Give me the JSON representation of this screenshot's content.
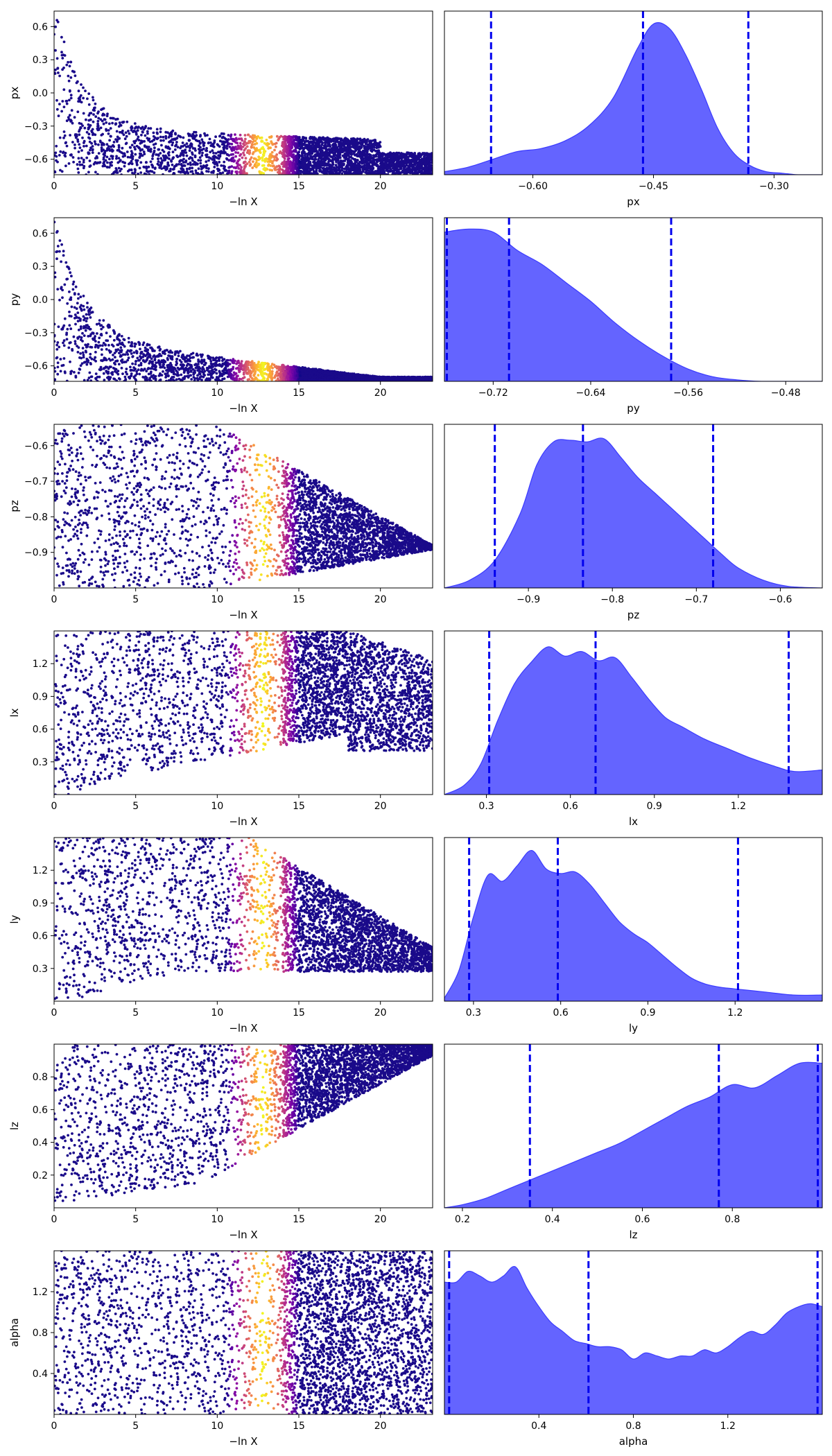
{
  "figure": {
    "trace_xlabel": "−ln X",
    "trace_xlim": [
      0,
      23.2
    ],
    "trace_xticks": [
      0,
      5,
      10,
      15,
      20
    ],
    "point_color": "#1a0a8a",
    "hist_color": "#6464ff",
    "line_color": "#0000ee",
    "hot_band": {
      "center": 12.8,
      "width": 2.3
    }
  },
  "chart_data": [
    {
      "type": "scatter",
      "param": "px",
      "ylabel": "px",
      "ylim": [
        -0.74,
        0.74
      ],
      "yticks": [
        0.6,
        0.3,
        0.0,
        -0.3,
        -0.6
      ],
      "yticklabels": [
        "0.6",
        "0.3",
        "0.0",
        "−0.3",
        "−0.6"
      ],
      "trace_shape": {
        "kind": "lower",
        "floor": -0.74,
        "tail_start": -0.4,
        "tail_end": -0.42,
        "spread_low": 0.34,
        "spread_high": 0.26,
        "decay": 1.8
      },
      "marginal": {
        "type": "area",
        "xlabel": "px",
        "xlim": [
          -0.71,
          -0.24
        ],
        "xticks": [
          -0.6,
          -0.45,
          -0.3
        ],
        "xticklabels": [
          "−0.60",
          "−0.45",
          "−0.30"
        ],
        "quantiles": [
          -0.652,
          -0.463,
          -0.332
        ],
        "density_x": [
          -0.71,
          -0.68,
          -0.65,
          -0.62,
          -0.59,
          -0.56,
          -0.53,
          -0.5,
          -0.47,
          -0.45,
          -0.43,
          -0.41,
          -0.39,
          -0.37,
          -0.35,
          -0.33,
          -0.31,
          -0.29,
          -0.27,
          -0.24
        ],
        "density_y": [
          0.02,
          0.05,
          0.1,
          0.15,
          0.17,
          0.22,
          0.32,
          0.5,
          0.82,
          0.98,
          0.95,
          0.78,
          0.55,
          0.3,
          0.14,
          0.06,
          0.02,
          0.01,
          0.0,
          0.0
        ]
      }
    },
    {
      "type": "scatter",
      "param": "py",
      "ylabel": "py",
      "ylim": [
        -0.74,
        0.74
      ],
      "yticks": [
        0.6,
        0.3,
        0.0,
        -0.3,
        -0.6
      ],
      "yticklabels": [
        "0.6",
        "0.3",
        "0.0",
        "−0.3",
        "−0.6"
      ],
      "trace_shape": {
        "kind": "lower",
        "floor": -0.74,
        "tail_start": -0.36,
        "tail_end": -0.7,
        "spread_low": 0.32,
        "spread_high": 0.06,
        "decay": 1.8
      },
      "marginal": {
        "type": "area",
        "xlabel": "py",
        "xlim": [
          -0.76,
          -0.45
        ],
        "xticks": [
          -0.72,
          -0.64,
          -0.56,
          -0.48
        ],
        "xticklabels": [
          "−0.72",
          "−0.64",
          "−0.56",
          "−0.48"
        ],
        "quantiles": [
          -0.758,
          -0.707,
          -0.574
        ],
        "density_x": [
          -0.76,
          -0.74,
          -0.72,
          -0.7,
          -0.68,
          -0.66,
          -0.64,
          -0.62,
          -0.6,
          -0.58,
          -0.56,
          -0.54,
          -0.52,
          -0.5,
          -0.48,
          -0.45
        ],
        "density_y": [
          0.97,
          0.99,
          0.97,
          0.85,
          0.76,
          0.64,
          0.52,
          0.38,
          0.26,
          0.16,
          0.08,
          0.03,
          0.01,
          0.0,
          0.0,
          0.0
        ]
      }
    },
    {
      "type": "scatter",
      "param": "pz",
      "ylabel": "pz",
      "ylim": [
        -1.0,
        -0.54
      ],
      "yticks": [
        -0.6,
        -0.7,
        -0.8,
        -0.9
      ],
      "yticklabels": [
        "−0.6",
        "−0.7",
        "−0.8",
        "−0.9"
      ],
      "trace_shape": {
        "kind": "wedge",
        "floor": -1.0,
        "ceil": -0.54,
        "tip": 23.2,
        "tip_value": -0.88,
        "start": 10
      },
      "marginal": {
        "type": "area",
        "xlabel": "pz",
        "xlim": [
          -1.0,
          -0.55
        ],
        "xticks": [
          -0.9,
          -0.8,
          -0.7,
          -0.6
        ],
        "xticklabels": [
          "−0.9",
          "−0.8",
          "−0.7",
          "−0.6"
        ],
        "quantiles": [
          -0.94,
          -0.835,
          -0.68
        ],
        "density_x": [
          -1.0,
          -0.97,
          -0.94,
          -0.91,
          -0.89,
          -0.87,
          -0.85,
          -0.83,
          -0.81,
          -0.79,
          -0.77,
          -0.75,
          -0.73,
          -0.71,
          -0.69,
          -0.67,
          -0.65,
          -0.62,
          -0.59,
          -0.55
        ],
        "density_y": [
          0.0,
          0.05,
          0.18,
          0.48,
          0.8,
          0.95,
          0.96,
          0.95,
          0.97,
          0.85,
          0.72,
          0.62,
          0.52,
          0.42,
          0.32,
          0.22,
          0.13,
          0.05,
          0.01,
          0.0
        ]
      }
    },
    {
      "type": "scatter",
      "param": "lx",
      "ylabel": "lx",
      "ylim": [
        0.0,
        1.5
      ],
      "yticks": [
        1.2,
        0.9,
        0.6,
        0.3
      ],
      "yticklabels": [
        "1.2",
        "0.9",
        "0.6",
        "0.3"
      ],
      "trace_shape": {
        "kind": "upper",
        "ceil": 1.5,
        "tail_start": 0.0,
        "tail_end": 0.58,
        "spread_low": 0.0,
        "spread_high": 0.0,
        "decay": 6
      },
      "marginal": {
        "type": "area",
        "xlabel": "lx",
        "xlim": [
          0.15,
          1.5
        ],
        "xticks": [
          0.3,
          0.6,
          0.9,
          1.2
        ],
        "xticklabels": [
          "0.3",
          "0.6",
          "0.9",
          "1.2"
        ],
        "quantiles": [
          0.31,
          0.69,
          1.38
        ],
        "density_x": [
          0.15,
          0.22,
          0.28,
          0.34,
          0.4,
          0.46,
          0.52,
          0.58,
          0.64,
          0.7,
          0.76,
          0.82,
          0.88,
          0.94,
          1.0,
          1.08,
          1.16,
          1.24,
          1.32,
          1.4,
          1.5
        ],
        "density_y": [
          0.0,
          0.06,
          0.2,
          0.48,
          0.72,
          0.86,
          0.96,
          0.9,
          0.93,
          0.87,
          0.89,
          0.76,
          0.62,
          0.5,
          0.44,
          0.36,
          0.3,
          0.24,
          0.19,
          0.15,
          0.16
        ]
      }
    },
    {
      "type": "scatter",
      "param": "ly",
      "ylabel": "ly",
      "ylim": [
        0.0,
        1.5
      ],
      "yticks": [
        1.2,
        0.9,
        0.6,
        0.3
      ],
      "yticklabels": [
        "1.2",
        "0.9",
        "0.6",
        "0.3"
      ],
      "trace_shape": {
        "kind": "wedge-upper",
        "ceil": 1.5,
        "floor_start": 0.0,
        "floor_end": 0.28,
        "tip": 23.2,
        "top_start": 1.5,
        "start": 12
      },
      "marginal": {
        "type": "area",
        "xlabel": "ly",
        "xlim": [
          0.2,
          1.5
        ],
        "xticks": [
          0.3,
          0.6,
          0.9,
          1.2
        ],
        "xticklabels": [
          "0.3",
          "0.6",
          "0.9",
          "1.2"
        ],
        "quantiles": [
          0.285,
          0.59,
          1.21
        ],
        "density_x": [
          0.2,
          0.25,
          0.3,
          0.35,
          0.4,
          0.45,
          0.5,
          0.55,
          0.6,
          0.65,
          0.7,
          0.75,
          0.8,
          0.85,
          0.9,
          0.95,
          1.0,
          1.05,
          1.1,
          1.15,
          1.2,
          1.3,
          1.4,
          1.5
        ],
        "density_y": [
          0.02,
          0.2,
          0.55,
          0.82,
          0.78,
          0.88,
          0.98,
          0.86,
          0.83,
          0.84,
          0.76,
          0.64,
          0.52,
          0.44,
          0.38,
          0.3,
          0.22,
          0.15,
          0.11,
          0.09,
          0.08,
          0.06,
          0.04,
          0.04
        ]
      }
    },
    {
      "type": "scatter",
      "param": "lz",
      "ylabel": "lz",
      "ylim": [
        0.0,
        1.0
      ],
      "yticks": [
        0.8,
        0.6,
        0.4,
        0.2
      ],
      "yticklabels": [
        "0.8",
        "0.6",
        "0.4",
        "0.2"
      ],
      "trace_shape": {
        "kind": "wedge-up",
        "ceil": 1.0,
        "floor_start": 0.0,
        "floor_end": 0.95,
        "tip": 23.2,
        "start": 8
      },
      "marginal": {
        "type": "area",
        "xlabel": "lz",
        "xlim": [
          0.16,
          1.0
        ],
        "xticks": [
          0.2,
          0.4,
          0.6,
          0.8
        ],
        "xticklabels": [
          "0.2",
          "0.4",
          "0.6",
          "0.8"
        ],
        "quantiles": [
          0.35,
          0.77,
          0.99
        ],
        "density_x": [
          0.16,
          0.2,
          0.25,
          0.3,
          0.35,
          0.4,
          0.45,
          0.5,
          0.55,
          0.6,
          0.65,
          0.7,
          0.75,
          0.8,
          0.85,
          0.9,
          0.95,
          1.0
        ],
        "density_y": [
          0.0,
          0.02,
          0.06,
          0.12,
          0.18,
          0.24,
          0.3,
          0.36,
          0.42,
          0.5,
          0.58,
          0.66,
          0.72,
          0.8,
          0.78,
          0.86,
          0.94,
          0.94
        ]
      }
    },
    {
      "type": "scatter",
      "param": "alpha",
      "ylabel": "alpha",
      "ylim": [
        0.0,
        1.6
      ],
      "yticks": [
        1.2,
        0.8,
        0.4
      ],
      "yticklabels": [
        "1.2",
        "0.8",
        "0.4"
      ],
      "trace_shape": {
        "kind": "fill",
        "floor": 0.0,
        "ceil": 1.6
      },
      "marginal": {
        "type": "area",
        "xlabel": "alpha",
        "xlim": [
          0.0,
          1.6
        ],
        "xticks": [
          0.4,
          0.8,
          1.2
        ],
        "xticklabels": [
          "0.4",
          "0.8",
          "1.2"
        ],
        "quantiles": [
          0.02,
          0.61,
          1.58
        ],
        "density_x": [
          0.0,
          0.05,
          0.1,
          0.15,
          0.2,
          0.25,
          0.3,
          0.35,
          0.4,
          0.45,
          0.5,
          0.55,
          0.6,
          0.65,
          0.7,
          0.75,
          0.8,
          0.85,
          0.9,
          0.95,
          1.0,
          1.05,
          1.1,
          1.15,
          1.2,
          1.25,
          1.3,
          1.35,
          1.4,
          1.45,
          1.5,
          1.55,
          1.6
        ],
        "density_y": [
          0.86,
          0.86,
          0.93,
          0.9,
          0.86,
          0.9,
          0.96,
          0.82,
          0.7,
          0.6,
          0.54,
          0.48,
          0.46,
          0.44,
          0.44,
          0.42,
          0.36,
          0.4,
          0.38,
          0.36,
          0.38,
          0.38,
          0.42,
          0.4,
          0.44,
          0.5,
          0.54,
          0.52,
          0.58,
          0.66,
          0.7,
          0.72,
          0.7
        ]
      }
    }
  ]
}
